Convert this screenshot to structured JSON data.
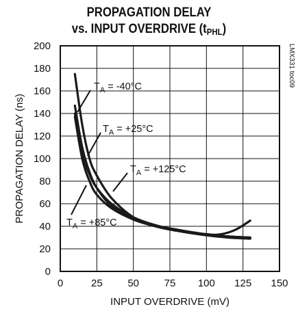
{
  "chart_data": {
    "type": "line",
    "title": "PROPAGATION DELAY",
    "subtitle_prefix": "vs. INPUT OVERDRIVE (t",
    "subtitle_sub": "PHL",
    "subtitle_suffix": ")",
    "xlabel": "INPUT OVERDRIVE (mV)",
    "ylabel": "PROPAGATION DELAY (ns)",
    "xlim": [
      0,
      150
    ],
    "ylim": [
      0,
      200
    ],
    "xticks": [
      0,
      25,
      50,
      75,
      100,
      125,
      150
    ],
    "yticks": [
      0,
      20,
      40,
      60,
      80,
      100,
      120,
      140,
      160,
      180,
      200
    ],
    "grid": true,
    "side_label": "LMX331 toc09",
    "series": [
      {
        "name": "T_A = -40°C",
        "x": [
          10,
          15,
          20,
          25,
          35,
          50,
          65,
          80,
          100,
          115,
          130
        ],
        "y": [
          175,
          130,
          100,
          85,
          65,
          48,
          41,
          36,
          32,
          30,
          29
        ]
      },
      {
        "name": "T_A = +25°C",
        "x": [
          10,
          15,
          20,
          25,
          35,
          50,
          65,
          80,
          100,
          115,
          130
        ],
        "y": [
          147,
          110,
          88,
          74,
          58,
          47,
          40,
          36,
          33,
          31,
          30
        ]
      },
      {
        "name": "T_A = +125°C",
        "x": [
          10,
          15,
          20,
          25,
          35,
          50,
          65,
          80,
          100,
          110,
          120,
          130
        ],
        "y": [
          140,
          105,
          86,
          74,
          60,
          48,
          41,
          37,
          33,
          33,
          37,
          45
        ]
      },
      {
        "name": "T_A = +85°C",
        "x": [
          10,
          15,
          20,
          25,
          35,
          50,
          65,
          80,
          100,
          115,
          130
        ],
        "y": [
          137,
          100,
          80,
          68,
          56,
          46,
          40,
          36,
          33,
          31,
          30
        ]
      }
    ],
    "annotations": [
      {
        "t": "T",
        "sub": "A",
        "rest": " = -40°C"
      },
      {
        "t": "T",
        "sub": "A",
        "rest": " = +25°C"
      },
      {
        "t": "T",
        "sub": "A",
        "rest": " = +125°C"
      },
      {
        "t": "T",
        "sub": "A",
        "rest": " = +85°C"
      }
    ]
  }
}
